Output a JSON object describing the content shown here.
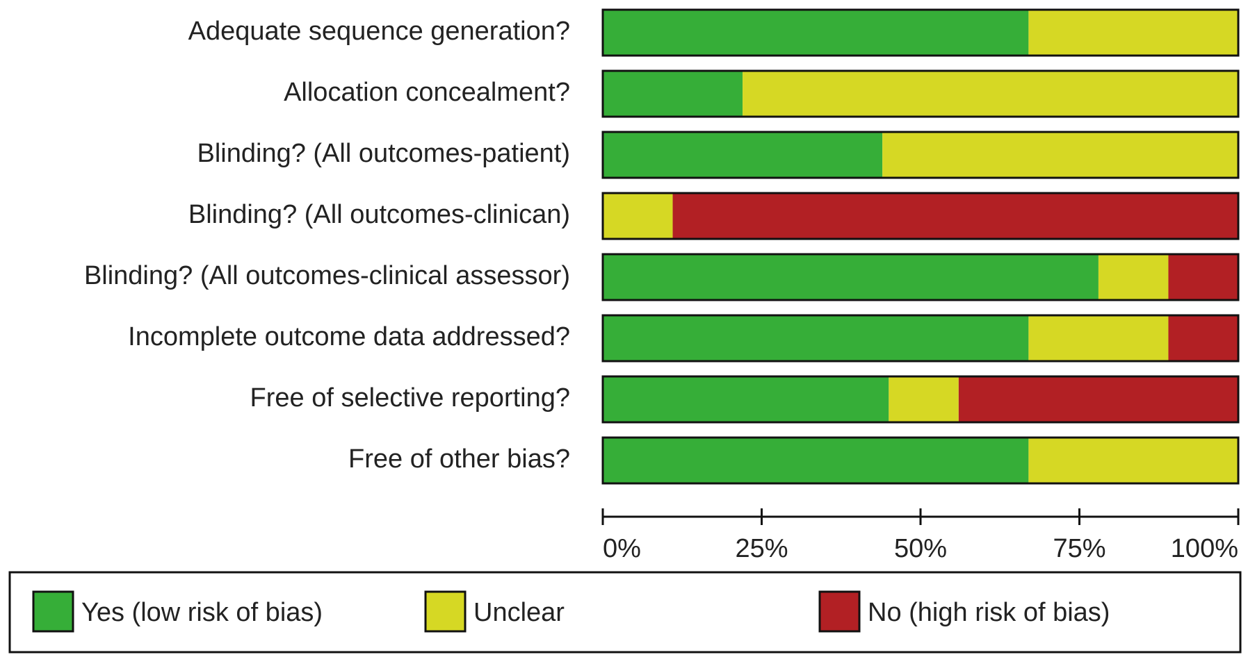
{
  "chart_data": {
    "type": "stacked-barh",
    "categories": [
      "Adequate sequence generation?",
      "Allocation concealment?",
      "Blinding? (All outcomes-patient)",
      "Blinding? (All outcomes-clinican)",
      "Blinding? (All outcomes-clinical assessor)",
      "Incomplete outcome data addressed?",
      "Free of selective reporting?",
      "Free of other bias?"
    ],
    "series": [
      {
        "name": "Yes (low risk of bias)",
        "color": "#36ae38",
        "values": [
          67,
          22,
          44,
          0,
          78,
          67,
          45,
          67
        ]
      },
      {
        "name": "Unclear",
        "color": "#d6d824",
        "values": [
          33,
          78,
          56,
          11,
          11,
          22,
          11,
          33
        ]
      },
      {
        "name": "No (high risk of bias)",
        "color": "#b22024",
        "values": [
          0,
          0,
          0,
          89,
          11,
          11,
          44,
          0
        ]
      }
    ],
    "xlim": [
      0,
      100
    ],
    "xticks": [
      {
        "value": 0,
        "label": "0%"
      },
      {
        "value": 25,
        "label": "25%"
      },
      {
        "value": 50,
        "label": "50%"
      },
      {
        "value": 75,
        "label": "75%"
      },
      {
        "value": 100,
        "label": "100%"
      }
    ],
    "legend": "bottom"
  }
}
